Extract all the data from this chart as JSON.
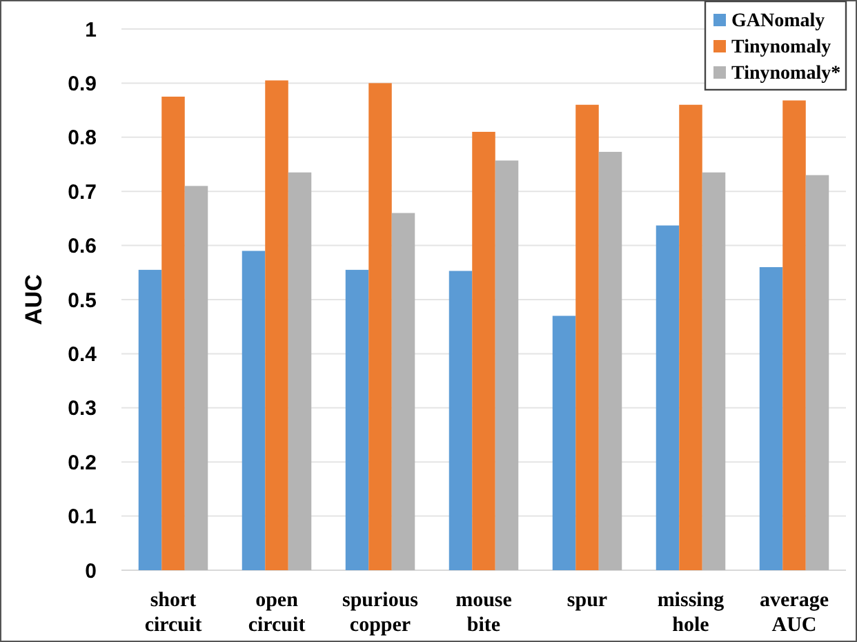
{
  "chart_data": {
    "type": "bar",
    "ylabel": "AUC",
    "categories": [
      "short circuit",
      "open circuit",
      "spurious copper",
      "mouse bite",
      "spur",
      "missing hole",
      "average AUC"
    ],
    "series": [
      {
        "name": "GANomaly",
        "color": "#5b9bd5",
        "values": [
          0.555,
          0.59,
          0.555,
          0.553,
          0.47,
          0.637,
          0.56
        ]
      },
      {
        "name": "Tinynomaly",
        "color": "#ed7d31",
        "values": [
          0.875,
          0.905,
          0.9,
          0.81,
          0.86,
          0.86,
          0.868
        ]
      },
      {
        "name": "Tinynomaly*",
        "color": "#b4b4b4",
        "values": [
          0.71,
          0.735,
          0.66,
          0.757,
          0.773,
          0.735,
          0.73
        ]
      }
    ],
    "ylim": [
      0,
      1
    ],
    "yticks": [
      0,
      0.1,
      0.2,
      0.3,
      0.4,
      0.5,
      0.6,
      0.7,
      0.8,
      0.9,
      1
    ],
    "grid": "y",
    "legend": "top right"
  }
}
